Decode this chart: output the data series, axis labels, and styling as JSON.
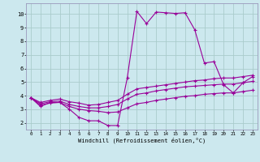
{
  "xlabel": "Windchill (Refroidissement éolien,°C)",
  "bg_color": "#cce8ee",
  "line_color": "#990099",
  "grid_color": "#aacccc",
  "xlim": [
    -0.5,
    23.5
  ],
  "ylim": [
    1.5,
    10.8
  ],
  "x_ticks": [
    0,
    1,
    2,
    3,
    4,
    5,
    6,
    7,
    8,
    9,
    10,
    11,
    12,
    13,
    14,
    15,
    16,
    17,
    18,
    19,
    20,
    21,
    22,
    23
  ],
  "y_ticks": [
    2,
    3,
    4,
    5,
    6,
    7,
    8,
    9,
    10
  ],
  "spike_line": [
    3.85,
    3.2,
    3.5,
    3.5,
    3.0,
    2.4,
    2.15,
    2.15,
    1.8,
    1.8,
    5.3,
    10.2,
    9.3,
    10.15,
    10.1,
    10.05,
    10.1,
    8.85,
    6.4,
    6.5,
    4.8,
    4.2,
    4.95,
    5.4
  ],
  "upper_line": [
    3.85,
    3.5,
    3.65,
    3.75,
    3.55,
    3.45,
    3.3,
    3.35,
    3.5,
    3.65,
    4.1,
    4.5,
    4.6,
    4.7,
    4.8,
    4.9,
    5.0,
    5.1,
    5.15,
    5.25,
    5.3,
    5.3,
    5.4,
    5.5
  ],
  "mid_line": [
    3.85,
    3.4,
    3.55,
    3.6,
    3.35,
    3.2,
    3.1,
    3.1,
    3.2,
    3.35,
    3.75,
    4.1,
    4.2,
    4.35,
    4.45,
    4.55,
    4.65,
    4.7,
    4.75,
    4.8,
    4.85,
    4.85,
    4.95,
    5.05
  ],
  "lower_line": [
    3.85,
    3.3,
    3.45,
    3.5,
    3.2,
    3.0,
    2.9,
    2.85,
    2.75,
    2.8,
    3.1,
    3.4,
    3.5,
    3.65,
    3.75,
    3.85,
    3.95,
    4.0,
    4.1,
    4.15,
    4.2,
    4.2,
    4.3,
    4.4
  ],
  "marker": "+",
  "markersize": 3.0,
  "markeredgewidth": 0.8,
  "linewidth": 0.8
}
